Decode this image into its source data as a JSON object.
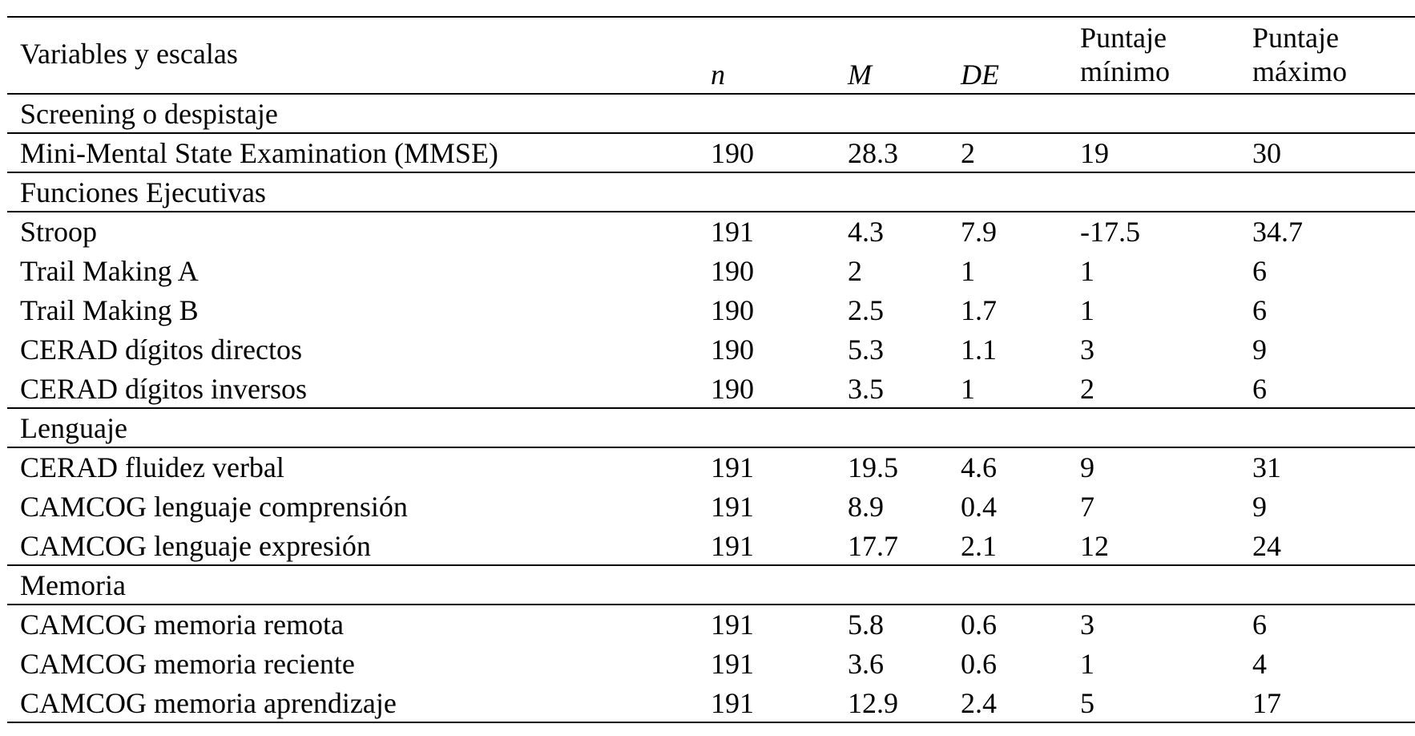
{
  "table": {
    "header": [
      "Variables y escalas",
      "n",
      "M",
      "DE",
      "Puntaje mínimo",
      "Puntaje máximo"
    ],
    "sections": [
      {
        "title": "Screening o despistaje",
        "rows": [
          [
            "Mini-Mental State Examination (MMSE)",
            190,
            28.3,
            2,
            19,
            30
          ]
        ]
      },
      {
        "title": "Funciones Ejecutivas",
        "rows": [
          [
            "Stroop",
            191,
            4.3,
            7.9,
            -17.5,
            34.7
          ],
          [
            "Trail Making A",
            190,
            2,
            1,
            1,
            6
          ],
          [
            "Trail Making B",
            190,
            2.5,
            1.7,
            1,
            6
          ],
          [
            "CERAD dígitos directos",
            190,
            5.3,
            1.1,
            3,
            9
          ],
          [
            "CERAD dígitos inversos",
            190,
            3.5,
            1,
            2,
            6
          ]
        ]
      },
      {
        "title": "Lenguaje",
        "rows": [
          [
            "CERAD fluidez verbal",
            191,
            19.5,
            4.6,
            9,
            31
          ],
          [
            "CAMCOG lenguaje comprensión",
            191,
            8.9,
            0.4,
            7,
            9
          ],
          [
            "CAMCOG lenguaje expresión",
            191,
            17.7,
            2.1,
            12,
            24
          ]
        ]
      },
      {
        "title": "Memoria",
        "rows": [
          [
            "CAMCOG memoria remota",
            191,
            5.8,
            0.6,
            3,
            6
          ],
          [
            "CAMCOG memoria reciente",
            191,
            3.6,
            0.6,
            1,
            4
          ],
          [
            "CAMCOG memoria aprendizaje",
            191,
            12.9,
            2.4,
            5,
            17
          ]
        ]
      }
    ]
  }
}
